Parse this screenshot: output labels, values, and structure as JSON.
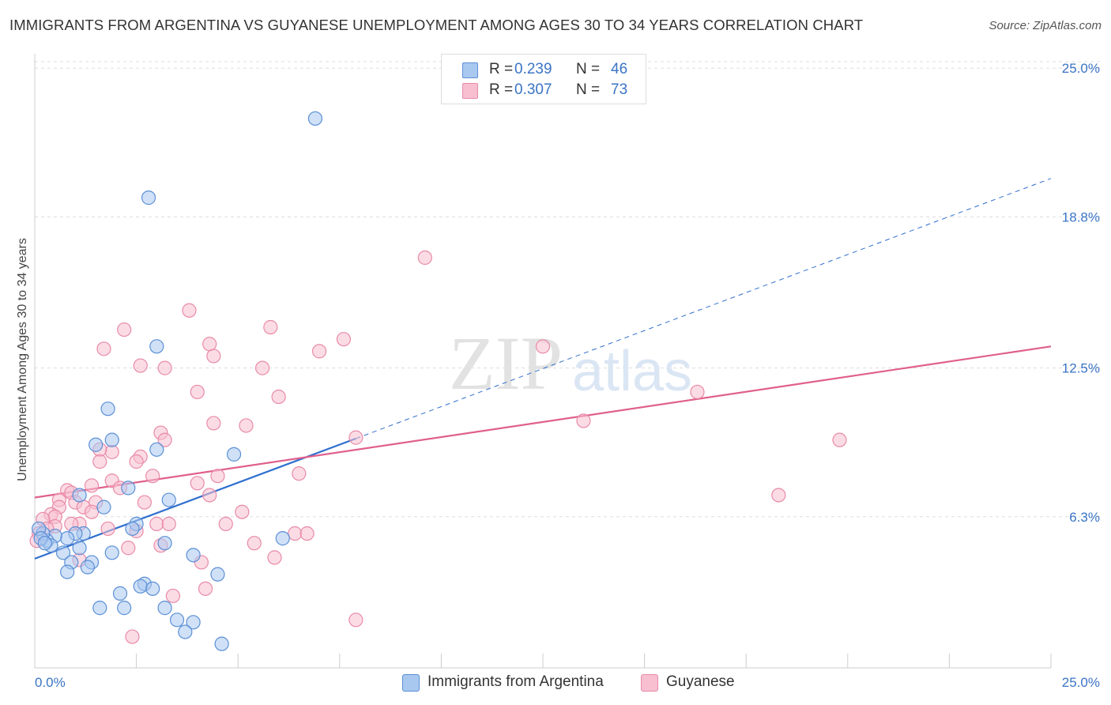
{
  "header": {
    "title": "IMMIGRANTS FROM ARGENTINA VS GUYANESE UNEMPLOYMENT AMONG AGES 30 TO 34 YEARS CORRELATION CHART",
    "source": "Source: ZipAtlas.com"
  },
  "watermark": {
    "zip": "ZIP",
    "atlas": "atlas"
  },
  "legend": {
    "series1": {
      "r_label": "R =",
      "r_value": "0.239",
      "n_label": "N =",
      "n_value": "46"
    },
    "series2": {
      "r_label": "R =",
      "r_value": "0.307",
      "n_label": "N =",
      "n_value": "73"
    }
  },
  "colors": {
    "series1_fill": "#a9c8f0",
    "series1_stroke": "#5b8fd6",
    "series1_line": "#2f6fce",
    "series2_fill": "#f7bfd0",
    "series2_stroke": "#e98aa8",
    "series2_line": "#e0608c",
    "grid": "#dddddd",
    "axis_label": "#3a74c4"
  },
  "chart_data": {
    "type": "scatter",
    "title": "IMMIGRANTS FROM ARGENTINA VS GUYANESE UNEMPLOYMENT AMONG AGES 30 TO 34 YEARS CORRELATION CHART",
    "xlabel": "",
    "ylabel": "Unemployment Among Ages 30 to 34 years",
    "xlim": [
      0,
      25
    ],
    "ylim": [
      0,
      25.6
    ],
    "x_tick_labels": [
      "0.0%",
      "25.0%"
    ],
    "y_ticks": [
      6.3,
      12.5,
      18.8,
      25.0
    ],
    "y_tick_labels": [
      "6.3%",
      "12.5%",
      "18.8%",
      "25.0%"
    ],
    "grid": true,
    "legend_placement": "top-center",
    "series": [
      {
        "name": "Immigrants from Argentina",
        "r": 0.239,
        "n": 46,
        "trend": {
          "x0": 0,
          "y0": 4.55,
          "x1": 25,
          "y1": 20.4,
          "solid_until": 7.9
        },
        "points": [
          [
            6.9,
            22.9
          ],
          [
            2.8,
            19.6
          ],
          [
            3.0,
            13.4
          ],
          [
            1.8,
            10.8
          ],
          [
            1.9,
            9.5
          ],
          [
            1.5,
            9.3
          ],
          [
            3.0,
            9.1
          ],
          [
            4.9,
            8.9
          ],
          [
            1.1,
            7.2
          ],
          [
            2.3,
            7.5
          ],
          [
            3.3,
            7.0
          ],
          [
            1.7,
            6.7
          ],
          [
            2.5,
            6.0
          ],
          [
            2.4,
            5.8
          ],
          [
            1.2,
            5.6
          ],
          [
            1.0,
            5.6
          ],
          [
            0.8,
            5.4
          ],
          [
            0.5,
            5.5
          ],
          [
            0.3,
            5.3
          ],
          [
            0.2,
            5.6
          ],
          [
            0.1,
            5.8
          ],
          [
            0.4,
            5.1
          ],
          [
            1.1,
            5.0
          ],
          [
            3.2,
            5.2
          ],
          [
            6.1,
            5.4
          ],
          [
            0.7,
            4.8
          ],
          [
            1.9,
            4.8
          ],
          [
            3.9,
            4.7
          ],
          [
            0.9,
            4.4
          ],
          [
            1.4,
            4.4
          ],
          [
            1.3,
            4.2
          ],
          [
            0.8,
            4.0
          ],
          [
            4.5,
            3.9
          ],
          [
            2.7,
            3.5
          ],
          [
            2.6,
            3.4
          ],
          [
            2.9,
            3.3
          ],
          [
            2.1,
            3.1
          ],
          [
            1.6,
            2.5
          ],
          [
            2.2,
            2.5
          ],
          [
            3.2,
            2.5
          ],
          [
            3.5,
            2.0
          ],
          [
            3.9,
            1.9
          ],
          [
            3.7,
            1.5
          ],
          [
            4.6,
            1.0
          ],
          [
            0.15,
            5.4
          ],
          [
            0.25,
            5.2
          ]
        ]
      },
      {
        "name": "Guyanese",
        "r": 0.307,
        "n": 73,
        "trend": {
          "x0": 0,
          "y0": 7.1,
          "x1": 25,
          "y1": 13.4
        },
        "points": [
          [
            9.6,
            17.1
          ],
          [
            3.8,
            14.9
          ],
          [
            5.8,
            14.2
          ],
          [
            2.2,
            14.1
          ],
          [
            7.6,
            13.7
          ],
          [
            4.3,
            13.5
          ],
          [
            1.7,
            13.3
          ],
          [
            7.0,
            13.2
          ],
          [
            12.5,
            13.4
          ],
          [
            4.4,
            13.0
          ],
          [
            2.6,
            12.6
          ],
          [
            3.2,
            12.5
          ],
          [
            5.6,
            12.5
          ],
          [
            4.0,
            11.5
          ],
          [
            6.0,
            11.3
          ],
          [
            16.3,
            11.5
          ],
          [
            4.4,
            10.2
          ],
          [
            5.2,
            10.1
          ],
          [
            13.5,
            10.3
          ],
          [
            3.1,
            9.8
          ],
          [
            19.8,
            9.5
          ],
          [
            7.9,
            9.6
          ],
          [
            3.2,
            9.5
          ],
          [
            1.9,
            9.0
          ],
          [
            1.6,
            9.1
          ],
          [
            2.6,
            8.8
          ],
          [
            1.6,
            8.6
          ],
          [
            2.5,
            8.6
          ],
          [
            6.5,
            8.1
          ],
          [
            4.5,
            8.0
          ],
          [
            2.9,
            8.0
          ],
          [
            1.9,
            7.8
          ],
          [
            4.0,
            7.7
          ],
          [
            1.4,
            7.6
          ],
          [
            2.1,
            7.5
          ],
          [
            0.8,
            7.4
          ],
          [
            0.9,
            7.3
          ],
          [
            4.3,
            7.2
          ],
          [
            18.3,
            7.2
          ],
          [
            0.6,
            7.0
          ],
          [
            1.0,
            6.9
          ],
          [
            1.5,
            6.9
          ],
          [
            2.7,
            6.9
          ],
          [
            0.6,
            6.7
          ],
          [
            1.2,
            6.7
          ],
          [
            1.4,
            6.5
          ],
          [
            5.1,
            6.5
          ],
          [
            0.4,
            6.4
          ],
          [
            0.5,
            6.3
          ],
          [
            0.2,
            6.2
          ],
          [
            1.1,
            6.0
          ],
          [
            0.9,
            6.0
          ],
          [
            3.0,
            6.0
          ],
          [
            3.3,
            6.0
          ],
          [
            4.7,
            6.0
          ],
          [
            0.5,
            5.9
          ],
          [
            0.3,
            5.8
          ],
          [
            1.8,
            5.8
          ],
          [
            2.5,
            5.7
          ],
          [
            0.1,
            5.6
          ],
          [
            6.4,
            5.6
          ],
          [
            6.7,
            5.6
          ],
          [
            5.4,
            5.2
          ],
          [
            3.1,
            5.1
          ],
          [
            2.3,
            5.0
          ],
          [
            0.05,
            5.3
          ],
          [
            1.1,
            4.5
          ],
          [
            4.1,
            4.4
          ],
          [
            5.9,
            4.6
          ],
          [
            4.2,
            3.3
          ],
          [
            3.4,
            3.0
          ],
          [
            7.9,
            2.0
          ],
          [
            2.4,
            1.3
          ]
        ]
      }
    ]
  }
}
